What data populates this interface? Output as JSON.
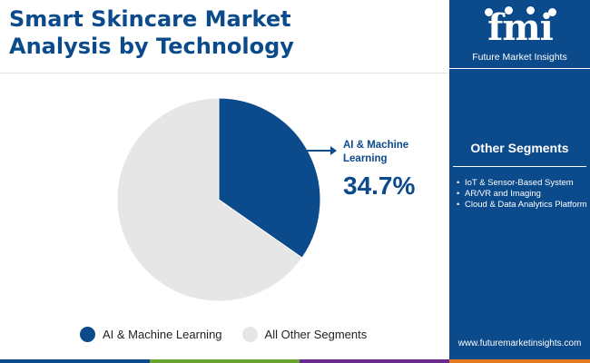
{
  "page": {
    "title_line1": "Smart Skincare Market",
    "title_line2": "Analysis by Technology"
  },
  "logo": {
    "letters": "fmi",
    "caption": "Future Market Insights"
  },
  "sidebar": {
    "other_title": "Other Segments",
    "items": [
      "IoT & Sensor-Based System",
      "AR/VR and Imaging",
      "Cloud & Data Analytics Platform"
    ],
    "website": "www.futuremarketinsights.com"
  },
  "callout": {
    "label": "AI & Machine Learning",
    "value": "34.7%"
  },
  "chart_data": {
    "type": "pie",
    "categories": [
      "AI & Machine Learning",
      "All Other Segments"
    ],
    "values": [
      34.7,
      65.3
    ],
    "colors": [
      "#0b4a8b",
      "#e6e6e6"
    ],
    "title": "Smart Skincare Market Analysis by Technology",
    "legend": "bottom"
  },
  "colors": {
    "brand_blue": "#0b4a8b",
    "bottom_bar": [
      "#0b4a8b",
      "#6aa52f",
      "#6a2c8c",
      "#e57a1f"
    ]
  }
}
